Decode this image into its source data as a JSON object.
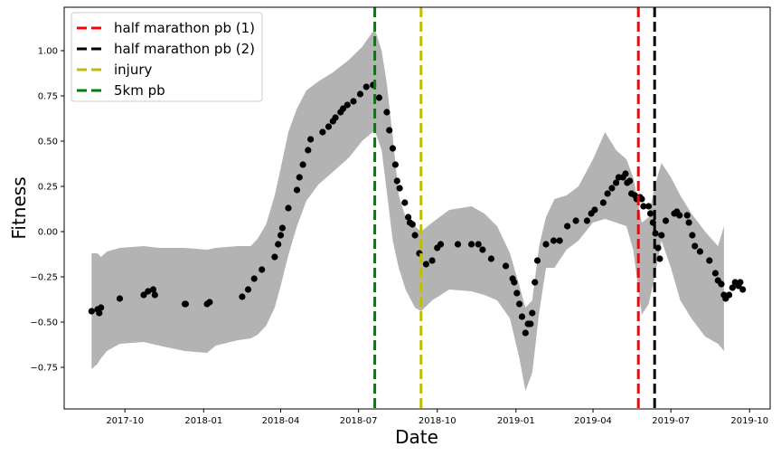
{
  "chart_data": {
    "type": "scatter",
    "title": "",
    "xlabel": "Date",
    "ylabel": "Fitness",
    "grid": false,
    "legend_position": "top-left",
    "xlim": [
      "2017-07-22",
      "2019-10-25"
    ],
    "ylim": [
      -0.98,
      1.24
    ],
    "x_ticks": [
      "2017-10-01",
      "2018-01-01",
      "2018-04-01",
      "2018-07-01",
      "2018-10-01",
      "2019-01-01",
      "2019-04-01",
      "2019-07-01",
      "2019-10-01"
    ],
    "x_tick_labels": [
      "2017-10",
      "2018-01",
      "2018-04",
      "2018-07",
      "2018-10",
      "2019-01",
      "2019-04",
      "2019-07",
      "2019-10"
    ],
    "y_ticks": [
      -0.75,
      -0.5,
      -0.25,
      0.0,
      0.25,
      0.5,
      0.75,
      1.0
    ],
    "y_tick_labels": [
      "−0.75",
      "−0.50",
      "−0.25",
      "0.00",
      "0.25",
      "0.50",
      "0.75",
      "1.00"
    ],
    "colors": {
      "band": "#b3b3b3",
      "points": "#000000"
    },
    "vlines": [
      {
        "name": "half marathon pb (1)",
        "x": "2019-05-24",
        "color": "#ff0000"
      },
      {
        "name": "half marathon pb (2)",
        "x": "2019-06-12",
        "color": "#000000"
      },
      {
        "name": "injury",
        "x": "2018-09-12",
        "color": "#bfbf00"
      },
      {
        "name": "5km pb",
        "x": "2018-07-20",
        "color": "#008000"
      }
    ],
    "band": [
      [
        "2017-08-23",
        -0.76,
        -0.12
      ],
      [
        "2017-08-30",
        -0.73,
        -0.12
      ],
      [
        "2017-09-03",
        -0.7,
        -0.14
      ],
      [
        "2017-09-10",
        -0.66,
        -0.11
      ],
      [
        "2017-09-25",
        -0.62,
        -0.09
      ],
      [
        "2017-10-23",
        -0.61,
        -0.08
      ],
      [
        "2017-11-10",
        -0.63,
        -0.09
      ],
      [
        "2017-12-10",
        -0.66,
        -0.09
      ],
      [
        "2018-01-05",
        -0.67,
        -0.1
      ],
      [
        "2018-01-15",
        -0.63,
        -0.09
      ],
      [
        "2018-02-10",
        -0.6,
        -0.08
      ],
      [
        "2018-02-25",
        -0.59,
        -0.08
      ],
      [
        "2018-03-05",
        -0.57,
        -0.04
      ],
      [
        "2018-03-15",
        -0.52,
        0.04
      ],
      [
        "2018-03-25",
        -0.42,
        0.2
      ],
      [
        "2018-04-01",
        -0.3,
        0.35
      ],
      [
        "2018-04-10",
        -0.13,
        0.55
      ],
      [
        "2018-04-20",
        0.03,
        0.68
      ],
      [
        "2018-05-01",
        0.17,
        0.78
      ],
      [
        "2018-05-15",
        0.26,
        0.83
      ],
      [
        "2018-06-01",
        0.33,
        0.88
      ],
      [
        "2018-06-20",
        0.41,
        0.95
      ],
      [
        "2018-07-05",
        0.5,
        1.02
      ],
      [
        "2018-07-20",
        0.56,
        1.12
      ],
      [
        "2018-07-28",
        0.45,
        1.0
      ],
      [
        "2018-08-03",
        0.22,
        0.82
      ],
      [
        "2018-08-10",
        -0.05,
        0.52
      ],
      [
        "2018-08-17",
        -0.2,
        0.2
      ],
      [
        "2018-08-25",
        -0.32,
        0.08
      ],
      [
        "2018-09-05",
        -0.42,
        0.03
      ],
      [
        "2018-09-12",
        -0.44,
        0.0
      ],
      [
        "2018-09-25",
        -0.38,
        0.05
      ],
      [
        "2018-10-15",
        -0.32,
        0.12
      ],
      [
        "2018-11-10",
        -0.33,
        0.14
      ],
      [
        "2018-11-25",
        -0.35,
        0.1
      ],
      [
        "2018-12-10",
        -0.38,
        0.03
      ],
      [
        "2018-12-25",
        -0.48,
        -0.12
      ],
      [
        "2019-01-05",
        -0.7,
        -0.3
      ],
      [
        "2019-01-12",
        -0.88,
        -0.42
      ],
      [
        "2019-01-20",
        -0.78,
        -0.38
      ],
      [
        "2019-01-28",
        -0.45,
        -0.08
      ],
      [
        "2019-02-05",
        -0.2,
        0.08
      ],
      [
        "2019-02-15",
        -0.2,
        0.18
      ],
      [
        "2019-03-01",
        -0.1,
        0.2
      ],
      [
        "2019-03-15",
        -0.05,
        0.25
      ],
      [
        "2019-04-01",
        0.05,
        0.4
      ],
      [
        "2019-04-15",
        0.07,
        0.55
      ],
      [
        "2019-04-28",
        0.05,
        0.45
      ],
      [
        "2019-05-10",
        0.03,
        0.4
      ],
      [
        "2019-05-18",
        -0.1,
        0.3
      ],
      [
        "2019-05-28",
        -0.46,
        0.05
      ],
      [
        "2019-06-05",
        -0.4,
        0.08
      ],
      [
        "2019-06-12",
        -0.25,
        0.25
      ],
      [
        "2019-06-20",
        -0.05,
        0.38
      ],
      [
        "2019-07-01",
        -0.2,
        0.3
      ],
      [
        "2019-07-12",
        -0.38,
        0.2
      ],
      [
        "2019-07-25",
        -0.48,
        0.1
      ],
      [
        "2019-08-10",
        -0.58,
        0.0
      ],
      [
        "2019-08-25",
        -0.62,
        -0.08
      ],
      [
        "2019-09-01",
        -0.66,
        0.03
      ]
    ],
    "points": [
      [
        "2017-08-23",
        -0.44
      ],
      [
        "2017-08-30",
        -0.43
      ],
      [
        "2017-09-01",
        -0.45
      ],
      [
        "2017-09-03",
        -0.42
      ],
      [
        "2017-09-25",
        -0.37
      ],
      [
        "2017-10-23",
        -0.35
      ],
      [
        "2017-10-28",
        -0.33
      ],
      [
        "2017-11-03",
        -0.32
      ],
      [
        "2017-11-05",
        -0.35
      ],
      [
        "2017-12-10",
        -0.4
      ],
      [
        "2017-12-11",
        -0.4
      ],
      [
        "2018-01-05",
        -0.4
      ],
      [
        "2018-01-08",
        -0.39
      ],
      [
        "2018-02-15",
        -0.36
      ],
      [
        "2018-02-22",
        -0.32
      ],
      [
        "2018-03-01",
        -0.26
      ],
      [
        "2018-03-10",
        -0.21
      ],
      [
        "2018-03-25",
        -0.14
      ],
      [
        "2018-03-29",
        -0.07
      ],
      [
        "2018-04-01",
        -0.02
      ],
      [
        "2018-04-03",
        0.02
      ],
      [
        "2018-04-10",
        0.13
      ],
      [
        "2018-04-20",
        0.23
      ],
      [
        "2018-04-23",
        0.3
      ],
      [
        "2018-04-27",
        0.37
      ],
      [
        "2018-05-03",
        0.45
      ],
      [
        "2018-05-06",
        0.51
      ],
      [
        "2018-05-20",
        0.55
      ],
      [
        "2018-05-27",
        0.58
      ],
      [
        "2018-06-01",
        0.61
      ],
      [
        "2018-06-04",
        0.63
      ],
      [
        "2018-06-10",
        0.66
      ],
      [
        "2018-06-13",
        0.68
      ],
      [
        "2018-06-18",
        0.7
      ],
      [
        "2018-06-25",
        0.72
      ],
      [
        "2018-07-03",
        0.76
      ],
      [
        "2018-07-10",
        0.8
      ],
      [
        "2018-07-18",
        0.81
      ],
      [
        "2018-07-25",
        0.74
      ],
      [
        "2018-08-03",
        0.66
      ],
      [
        "2018-08-06",
        0.56
      ],
      [
        "2018-08-10",
        0.46
      ],
      [
        "2018-08-13",
        0.37
      ],
      [
        "2018-08-15",
        0.28
      ],
      [
        "2018-08-18",
        0.24
      ],
      [
        "2018-08-24",
        0.16
      ],
      [
        "2018-08-28",
        0.08
      ],
      [
        "2018-08-30",
        0.05
      ],
      [
        "2018-09-02",
        0.04
      ],
      [
        "2018-09-05",
        -0.02
      ],
      [
        "2018-09-10",
        -0.12
      ],
      [
        "2018-09-18",
        -0.18
      ],
      [
        "2018-09-25",
        -0.16
      ],
      [
        "2018-10-01",
        -0.09
      ],
      [
        "2018-10-05",
        -0.07
      ],
      [
        "2018-10-25",
        -0.07
      ],
      [
        "2018-11-10",
        -0.07
      ],
      [
        "2018-11-18",
        -0.07
      ],
      [
        "2018-11-23",
        -0.1
      ],
      [
        "2018-12-03",
        -0.15
      ],
      [
        "2018-12-20",
        -0.19
      ],
      [
        "2018-12-28",
        -0.26
      ],
      [
        "2018-12-30",
        -0.28
      ],
      [
        "2019-01-02",
        -0.34
      ],
      [
        "2019-01-05",
        -0.4
      ],
      [
        "2019-01-08",
        -0.47
      ],
      [
        "2019-01-12",
        -0.56
      ],
      [
        "2019-01-15",
        -0.51
      ],
      [
        "2019-01-18",
        -0.51
      ],
      [
        "2019-01-20",
        -0.45
      ],
      [
        "2019-01-23",
        -0.28
      ],
      [
        "2019-01-26",
        -0.16
      ],
      [
        "2019-02-05",
        -0.07
      ],
      [
        "2019-02-14",
        -0.05
      ],
      [
        "2019-02-21",
        -0.05
      ],
      [
        "2019-03-02",
        0.03
      ],
      [
        "2019-03-12",
        0.06
      ],
      [
        "2019-03-25",
        0.06
      ],
      [
        "2019-03-30",
        0.1
      ],
      [
        "2019-04-03",
        0.12
      ],
      [
        "2019-04-13",
        0.16
      ],
      [
        "2019-04-18",
        0.21
      ],
      [
        "2019-04-23",
        0.24
      ],
      [
        "2019-04-28",
        0.27
      ],
      [
        "2019-05-01",
        0.3
      ],
      [
        "2019-05-06",
        0.3
      ],
      [
        "2019-05-09",
        0.32
      ],
      [
        "2019-05-11",
        0.27
      ],
      [
        "2019-05-14",
        0.28
      ],
      [
        "2019-05-16",
        0.21
      ],
      [
        "2019-05-20",
        0.2
      ],
      [
        "2019-05-22",
        0.18
      ],
      [
        "2019-05-26",
        0.19
      ],
      [
        "2019-05-28",
        0.18
      ],
      [
        "2019-05-30",
        0.14
      ],
      [
        "2019-06-05",
        0.14
      ],
      [
        "2019-06-07",
        0.1
      ],
      [
        "2019-06-10",
        0.05
      ],
      [
        "2019-06-13",
        -0.01
      ],
      [
        "2019-06-16",
        -0.09
      ],
      [
        "2019-06-18",
        -0.15
      ],
      [
        "2019-06-20",
        -0.02
      ],
      [
        "2019-06-25",
        0.06
      ],
      [
        "2019-07-05",
        0.1
      ],
      [
        "2019-07-08",
        0.11
      ],
      [
        "2019-07-11",
        0.09
      ],
      [
        "2019-07-20",
        0.09
      ],
      [
        "2019-07-22",
        0.05
      ],
      [
        "2019-07-26",
        -0.02
      ],
      [
        "2019-07-29",
        -0.08
      ],
      [
        "2019-08-04",
        -0.11
      ],
      [
        "2019-08-15",
        -0.16
      ],
      [
        "2019-08-22",
        -0.23
      ],
      [
        "2019-08-25",
        -0.27
      ],
      [
        "2019-08-29",
        -0.29
      ],
      [
        "2019-09-01",
        -0.35
      ],
      [
        "2019-09-03",
        -0.37
      ],
      [
        "2019-09-07",
        -0.35
      ],
      [
        "2019-09-11",
        -0.31
      ],
      [
        "2019-09-14",
        -0.28
      ],
      [
        "2019-09-18",
        -0.3
      ],
      [
        "2019-09-20",
        -0.28
      ],
      [
        "2019-09-23",
        -0.32
      ]
    ]
  }
}
